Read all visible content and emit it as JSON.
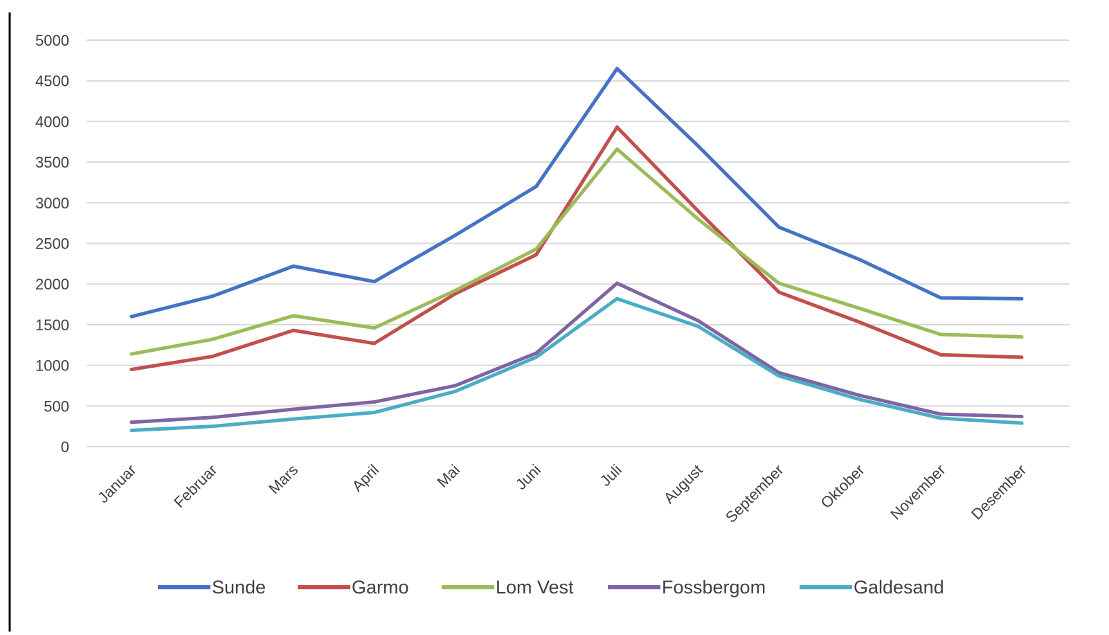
{
  "chart_data": {
    "type": "line",
    "title": "",
    "xlabel": "",
    "ylabel": "",
    "categories": [
      "Januar",
      "Februar",
      "Mars",
      "April",
      "Mai",
      "Juni",
      "Juli",
      "August",
      "September",
      "Oktober",
      "November",
      "Desember"
    ],
    "ylim": [
      0,
      5000
    ],
    "yticks": [
      0,
      500,
      1000,
      1500,
      2000,
      2500,
      3000,
      3500,
      4000,
      4500,
      5000
    ],
    "grid": true,
    "legend_position": "bottom",
    "series": [
      {
        "name": "Sunde",
        "color": "#4472c4",
        "values": [
          1600,
          1850,
          2220,
          2030,
          2600,
          3200,
          4650,
          3700,
          2700,
          2300,
          1830,
          1820
        ]
      },
      {
        "name": "Garmo",
        "color": "#c0504d",
        "values": [
          950,
          1110,
          1430,
          1270,
          1880,
          2360,
          3930,
          2900,
          1900,
          1530,
          1130,
          1100
        ]
      },
      {
        "name": "Lom Vest",
        "color": "#9bbb59",
        "values": [
          1140,
          1320,
          1610,
          1460,
          1920,
          2430,
          3660,
          2800,
          2010,
          1700,
          1380,
          1350
        ]
      },
      {
        "name": "Fossbergom",
        "color": "#8064a2",
        "values": [
          300,
          360,
          460,
          550,
          750,
          1150,
          2010,
          1550,
          910,
          630,
          400,
          370
        ]
      },
      {
        "name": "Galdesand",
        "color": "#4bacc6",
        "values": [
          200,
          250,
          340,
          420,
          680,
          1100,
          1820,
          1480,
          870,
          580,
          350,
          290
        ]
      }
    ]
  }
}
